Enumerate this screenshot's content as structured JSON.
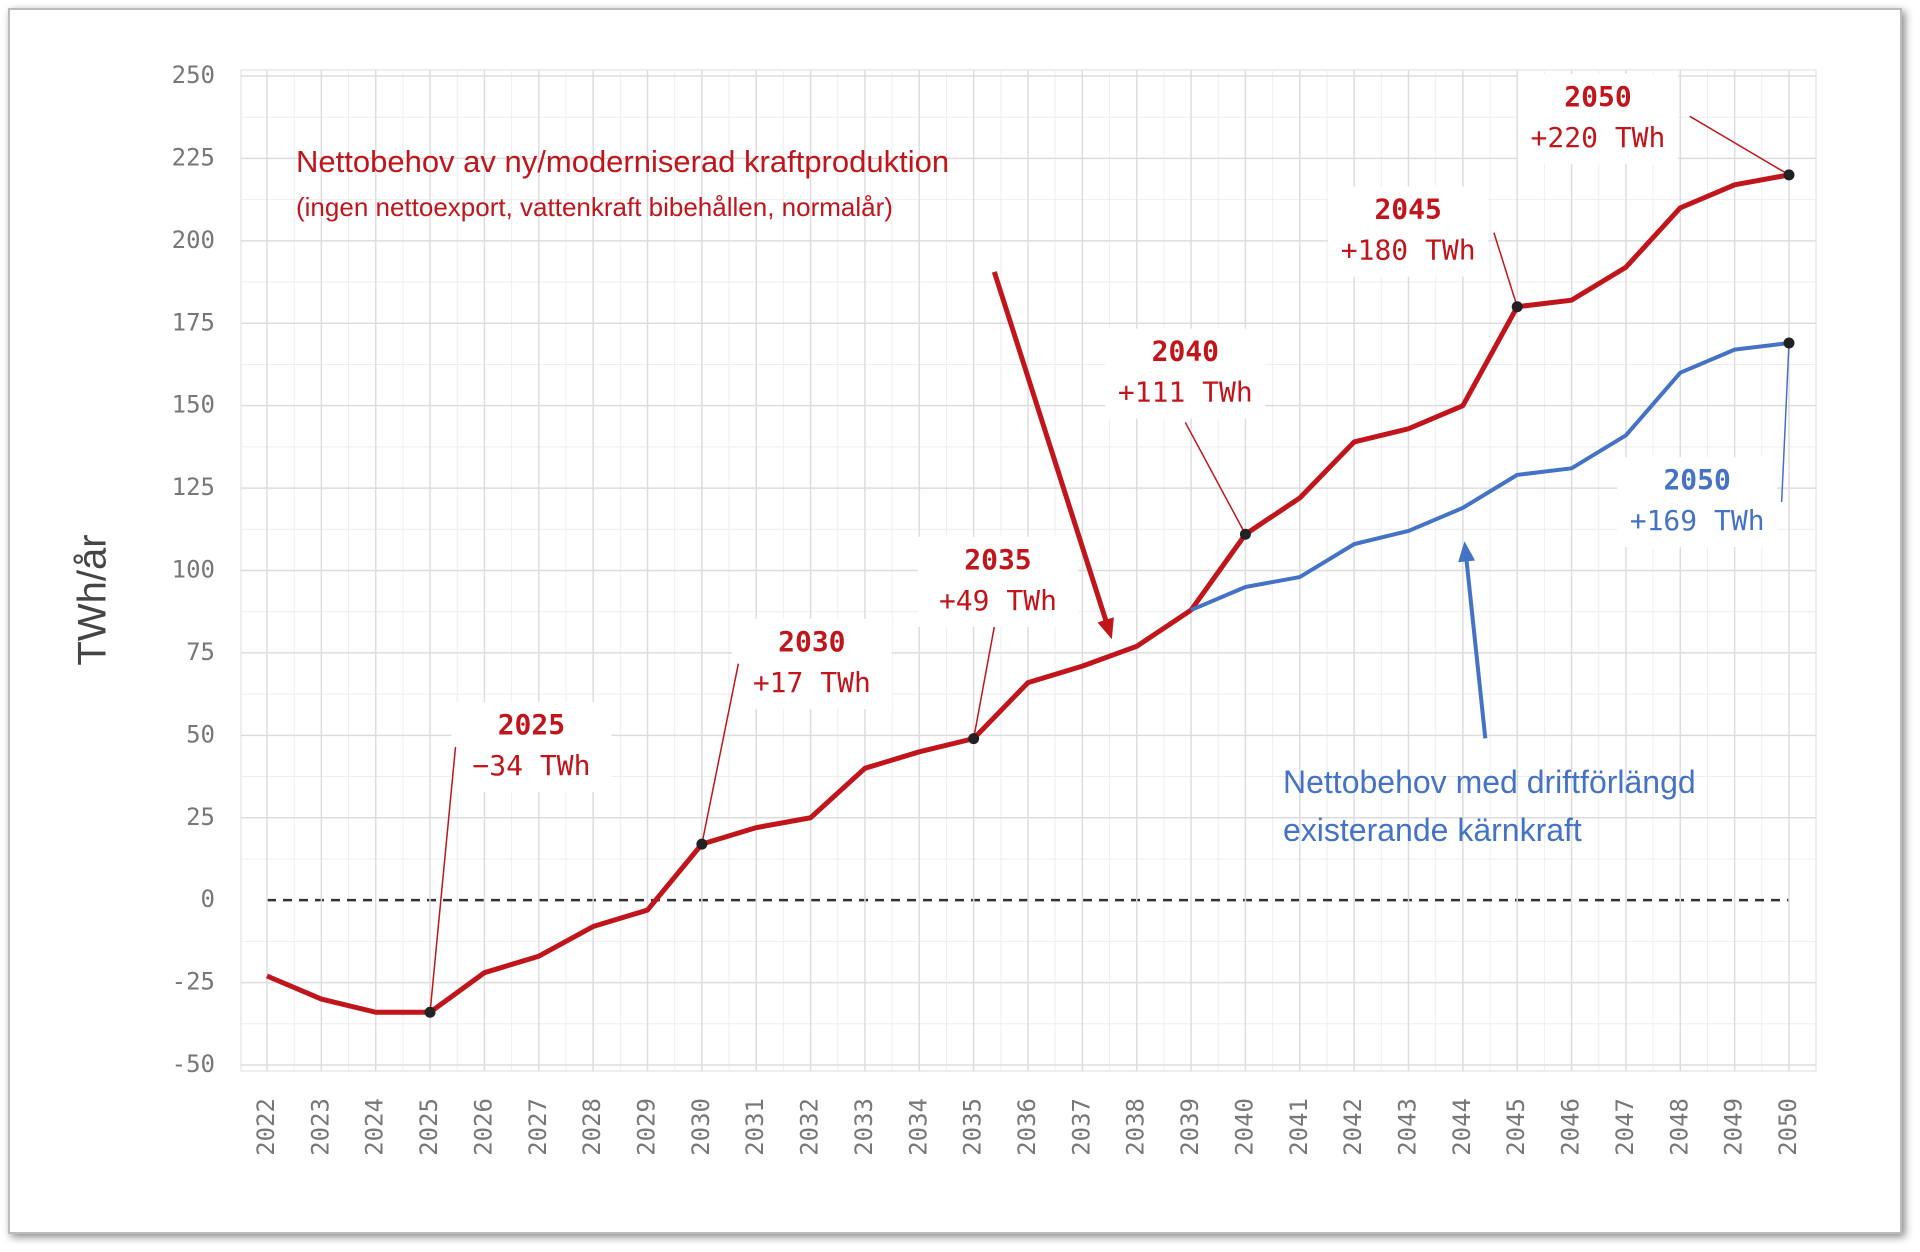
{
  "chart_data": {
    "type": "line",
    "y_label": "TWh/år",
    "categories": [
      "2022",
      "2023",
      "2024",
      "2025",
      "2026",
      "2027",
      "2028",
      "2029",
      "2030",
      "2031",
      "2032",
      "2033",
      "2034",
      "2035",
      "2036",
      "2037",
      "2038",
      "2039",
      "2040",
      "2041",
      "2042",
      "2043",
      "2044",
      "2045",
      "2046",
      "2047",
      "2048",
      "2049",
      "2050"
    ],
    "series": [
      {
        "name": "Nettobehov av ny/moderniserad kraftproduktion",
        "note": "(ingen nettoexport, vattenkraft bibehållen, normalår)",
        "color": "#c0151b",
        "values": [
          -23,
          -30,
          -34,
          -34,
          -22,
          -17,
          -8,
          -3,
          17,
          22,
          25,
          40,
          45,
          49,
          66,
          71,
          77,
          88,
          111,
          122,
          139,
          143,
          150,
          180,
          182,
          192,
          210,
          217,
          220
        ],
        "annotations": [
          {
            "label": "2025",
            "text": "−34 TWh"
          },
          {
            "label": "2030",
            "text": "+17 TWh"
          },
          {
            "label": "2035",
            "text": "+49 TWh"
          },
          {
            "label": "2040",
            "text": "+111 TWh"
          },
          {
            "label": "2045",
            "text": "+180 TWh"
          },
          {
            "label": "2050",
            "text": "+220 TWh"
          }
        ]
      },
      {
        "name": "Nettobehov med driftförlängd existerande kärnkraft",
        "color": "#4472c4",
        "values": [
          null,
          null,
          null,
          null,
          null,
          null,
          null,
          null,
          null,
          null,
          null,
          null,
          null,
          null,
          null,
          null,
          null,
          88,
          95,
          98,
          108,
          112,
          119,
          129,
          131,
          141,
          160,
          167,
          169
        ],
        "annotations": [
          {
            "label": "2050",
            "text": "+169 TWh"
          }
        ]
      }
    ],
    "ylim": [
      -50,
      250
    ],
    "yticks": [
      -50,
      -25,
      0,
      25,
      50,
      75,
      100,
      125,
      150,
      175,
      200,
      225,
      250
    ],
    "grid": true
  }
}
